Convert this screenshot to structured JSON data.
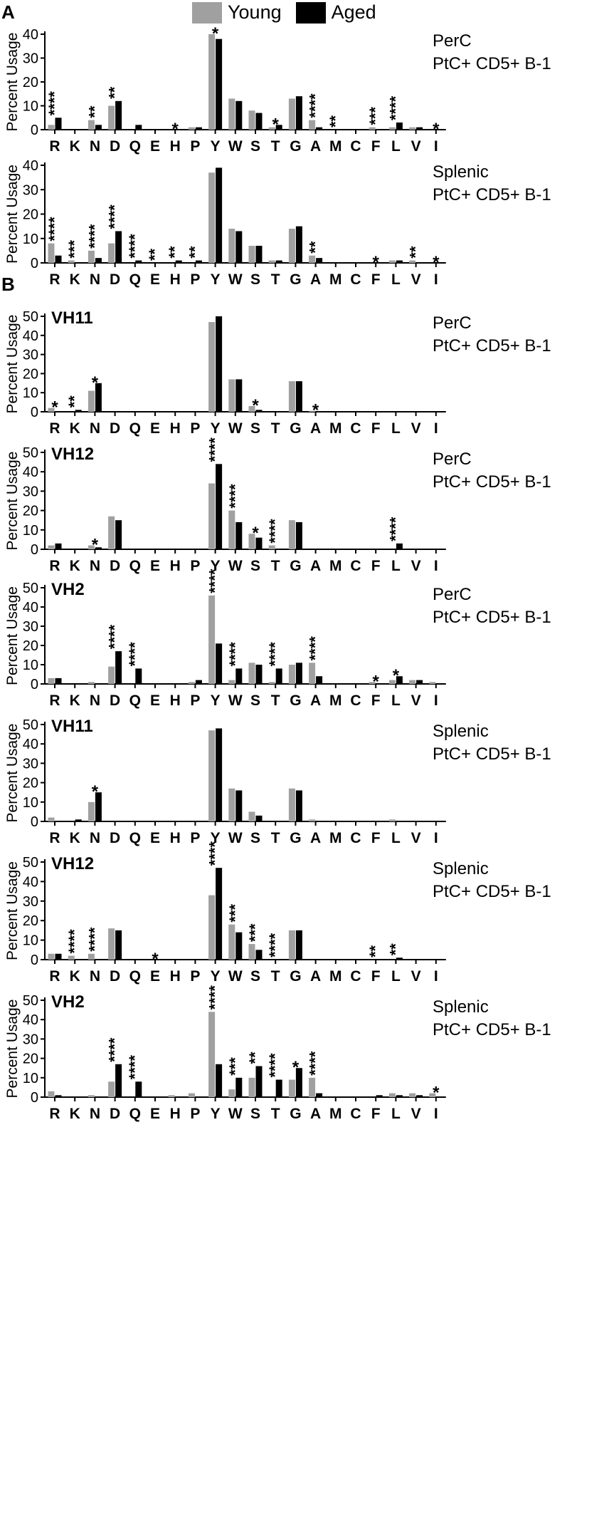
{
  "legend": {
    "young_label": "Young",
    "aged_label": "Aged",
    "young_color": "#a0a0a0",
    "aged_color": "#000000"
  },
  "panel_labels": {
    "a": "A",
    "b": "B"
  },
  "ylabel": "Percent Usage",
  "chart_data": [
    {
      "type": "bar",
      "panel": "A",
      "vh": "",
      "tissue": "PerC",
      "cells": "PtC+ CD5+ B-1",
      "ylabel": "Percent Usage",
      "ylim": [
        0,
        40
      ],
      "yticks": [
        0,
        10,
        20,
        30,
        40
      ],
      "categories": [
        "R",
        "K",
        "N",
        "D",
        "Q",
        "E",
        "H",
        "P",
        "Y",
        "W",
        "S",
        "T",
        "G",
        "A",
        "M",
        "C",
        "F",
        "L",
        "V",
        "I"
      ],
      "series": [
        {
          "name": "Young",
          "values": [
            2,
            0,
            4,
            10,
            0,
            0,
            0,
            1,
            40,
            13,
            8,
            1,
            13,
            4,
            0,
            0,
            1,
            1,
            1,
            0
          ]
        },
        {
          "name": "Aged",
          "values": [
            5,
            0,
            2,
            12,
            2,
            0,
            0,
            1,
            38,
            12,
            7,
            2,
            14,
            1,
            0,
            0,
            0,
            3,
            1,
            0
          ]
        }
      ],
      "significance": [
        "****",
        "",
        "**",
        "**",
        "",
        "",
        "*",
        "",
        "*",
        "",
        "",
        "*",
        "",
        "****",
        "**",
        "",
        "***",
        "****",
        "",
        "*"
      ]
    },
    {
      "type": "bar",
      "panel": "A",
      "vh": "",
      "tissue": "Splenic",
      "cells": "PtC+ CD5+ B-1",
      "ylabel": "Percent Usage",
      "ylim": [
        0,
        40
      ],
      "yticks": [
        0,
        10,
        20,
        30,
        40
      ],
      "categories": [
        "R",
        "K",
        "N",
        "D",
        "Q",
        "E",
        "H",
        "P",
        "Y",
        "W",
        "S",
        "T",
        "G",
        "A",
        "M",
        "C",
        "F",
        "L",
        "V",
        "I"
      ],
      "series": [
        {
          "name": "Young",
          "values": [
            8,
            1,
            5,
            8,
            0,
            0,
            0,
            0,
            37,
            14,
            7,
            1,
            14,
            3,
            0,
            0,
            0,
            1,
            1,
            0
          ]
        },
        {
          "name": "Aged",
          "values": [
            3,
            0,
            2,
            13,
            1,
            0,
            1,
            1,
            39,
            13,
            7,
            1,
            15,
            2,
            0,
            0,
            0,
            1,
            0,
            0
          ]
        }
      ],
      "significance": [
        "****",
        "***",
        "****",
        "****",
        "****",
        "**",
        "**",
        "**",
        "",
        "",
        "",
        "",
        "",
        "**",
        "",
        "",
        "*",
        "",
        "**",
        "*"
      ]
    },
    {
      "type": "bar",
      "panel": "B",
      "vh": "VH11",
      "tissue": "PerC",
      "cells": "PtC+ CD5+ B-1",
      "ylabel": "Percent Usage",
      "ylim": [
        0,
        50
      ],
      "yticks": [
        0,
        10,
        20,
        30,
        40,
        50
      ],
      "categories": [
        "R",
        "K",
        "N",
        "D",
        "Q",
        "E",
        "H",
        "P",
        "Y",
        "W",
        "S",
        "T",
        "G",
        "A",
        "M",
        "C",
        "F",
        "L",
        "V",
        "I"
      ],
      "series": [
        {
          "name": "Young",
          "values": [
            2,
            0,
            11,
            0,
            0,
            0,
            0,
            0,
            47,
            17,
            3,
            0,
            16,
            0.5,
            0,
            0,
            0,
            0,
            0,
            0
          ]
        },
        {
          "name": "Aged",
          "values": [
            0,
            1,
            15,
            0,
            0,
            0,
            0,
            0,
            50,
            17,
            1,
            0,
            16,
            0,
            0,
            0,
            0,
            0,
            0,
            0
          ]
        }
      ],
      "significance": [
        "*",
        "**",
        "*",
        "",
        "",
        "",
        "",
        "",
        "",
        "",
        "*",
        "",
        "",
        "*",
        "",
        "",
        "",
        "",
        "",
        ""
      ]
    },
    {
      "type": "bar",
      "panel": "B",
      "vh": "VH12",
      "tissue": "PerC",
      "cells": "PtC+ CD5+ B-1",
      "ylabel": "Percent Usage",
      "ylim": [
        0,
        50
      ],
      "yticks": [
        0,
        10,
        20,
        30,
        40,
        50
      ],
      "categories": [
        "R",
        "K",
        "N",
        "D",
        "Q",
        "E",
        "H",
        "P",
        "Y",
        "W",
        "S",
        "T",
        "G",
        "A",
        "M",
        "C",
        "F",
        "L",
        "V",
        "I"
      ],
      "series": [
        {
          "name": "Young",
          "values": [
            2,
            0,
            2,
            17,
            0,
            0,
            0,
            0,
            34,
            20,
            8,
            2,
            15,
            0,
            0,
            0,
            0,
            0,
            0,
            0
          ]
        },
        {
          "name": "Aged",
          "values": [
            3,
            0,
            1,
            15,
            0,
            0,
            0,
            0,
            44,
            14,
            6,
            0,
            14,
            0,
            0,
            0,
            0,
            3,
            0,
            0
          ]
        }
      ],
      "significance": [
        "",
        "",
        "*",
        "",
        "",
        "",
        "",
        "",
        "****",
        "****",
        "*",
        "****",
        "",
        "",
        "",
        "",
        "",
        "****",
        "",
        ""
      ]
    },
    {
      "type": "bar",
      "panel": "B",
      "vh": "VH2",
      "tissue": "PerC",
      "cells": "PtC+ CD5+ B-1",
      "ylabel": "Percent Usage",
      "ylim": [
        0,
        50
      ],
      "yticks": [
        0,
        10,
        20,
        30,
        40,
        50
      ],
      "categories": [
        "R",
        "K",
        "N",
        "D",
        "Q",
        "E",
        "H",
        "P",
        "Y",
        "W",
        "S",
        "T",
        "G",
        "A",
        "M",
        "C",
        "F",
        "L",
        "V",
        "I"
      ],
      "series": [
        {
          "name": "Young",
          "values": [
            3,
            0,
            1,
            9,
            0,
            0,
            0,
            1,
            46,
            2,
            11,
            1,
            10,
            11,
            0,
            0,
            1,
            2,
            2,
            1
          ]
        },
        {
          "name": "Aged",
          "values": [
            3,
            0,
            0,
            17,
            8,
            0,
            0,
            2,
            21,
            8,
            10,
            8,
            11,
            4,
            0,
            0,
            0,
            4,
            2,
            0
          ]
        }
      ],
      "significance": [
        "",
        "",
        "",
        "****",
        "****",
        "",
        "",
        "",
        "****",
        "****",
        "",
        "****",
        "",
        "****",
        "",
        "",
        "*",
        "*",
        "",
        ""
      ]
    },
    {
      "type": "bar",
      "panel": "B",
      "vh": "VH11",
      "tissue": "Splenic",
      "cells": "PtC+ CD5+ B-1",
      "ylabel": "Percent Usage",
      "ylim": [
        0,
        50
      ],
      "yticks": [
        0,
        10,
        20,
        30,
        40,
        50
      ],
      "categories": [
        "R",
        "K",
        "N",
        "D",
        "Q",
        "E",
        "H",
        "P",
        "Y",
        "W",
        "S",
        "T",
        "G",
        "A",
        "M",
        "C",
        "F",
        "L",
        "V",
        "I"
      ],
      "series": [
        {
          "name": "Young",
          "values": [
            2,
            0,
            10,
            0,
            0,
            0,
            0,
            0,
            47,
            17,
            5,
            0,
            17,
            1,
            0,
            0,
            0,
            1,
            0,
            0
          ]
        },
        {
          "name": "Aged",
          "values": [
            0,
            1,
            15,
            0,
            0,
            0,
            0,
            0,
            48,
            16,
            3,
            0,
            16,
            0,
            0,
            0,
            0,
            0,
            0,
            0
          ]
        }
      ],
      "significance": [
        "",
        "",
        "*",
        "",
        "",
        "",
        "",
        "",
        "",
        "",
        "",
        "",
        "",
        "",
        "",
        "",
        "",
        "",
        "",
        ""
      ]
    },
    {
      "type": "bar",
      "panel": "B",
      "vh": "VH12",
      "tissue": "Splenic",
      "cells": "PtC+ CD5+ B-1",
      "ylabel": "Percent Usage",
      "ylim": [
        0,
        50
      ],
      "yticks": [
        0,
        10,
        20,
        30,
        40,
        50
      ],
      "categories": [
        "R",
        "K",
        "N",
        "D",
        "Q",
        "E",
        "H",
        "P",
        "Y",
        "W",
        "S",
        "T",
        "G",
        "A",
        "M",
        "C",
        "F",
        "L",
        "V",
        "I"
      ],
      "series": [
        {
          "name": "Young",
          "values": [
            3,
            2,
            3,
            16,
            0,
            0,
            0,
            0,
            33,
            18,
            8,
            0,
            15,
            0,
            0,
            0,
            0,
            0,
            0,
            0
          ]
        },
        {
          "name": "Aged",
          "values": [
            3,
            0,
            0,
            15,
            0,
            0,
            0,
            0,
            47,
            14,
            5,
            0,
            15,
            0,
            0,
            0,
            0,
            1,
            0,
            0
          ]
        }
      ],
      "significance": [
        "",
        "****",
        "****",
        "",
        "",
        "*",
        "",
        "",
        "****",
        "***",
        "***",
        "****",
        "",
        "",
        "",
        "",
        "**",
        "**",
        "",
        ""
      ]
    },
    {
      "type": "bar",
      "panel": "B",
      "vh": "VH2",
      "tissue": "Splenic",
      "cells": "PtC+ CD5+ B-1",
      "ylabel": "Percent Usage",
      "ylim": [
        0,
        50
      ],
      "yticks": [
        0,
        10,
        20,
        30,
        40,
        50
      ],
      "categories": [
        "R",
        "K",
        "N",
        "D",
        "Q",
        "E",
        "H",
        "P",
        "Y",
        "W",
        "S",
        "T",
        "G",
        "A",
        "M",
        "C",
        "F",
        "L",
        "V",
        "I"
      ],
      "series": [
        {
          "name": "Young",
          "values": [
            3,
            0,
            1,
            8,
            0,
            0,
            1,
            2,
            44,
            4,
            10,
            0,
            9,
            10,
            0,
            0,
            0,
            2,
            2,
            2
          ]
        },
        {
          "name": "Aged",
          "values": [
            1,
            0,
            0,
            17,
            8,
            0,
            0,
            0,
            17,
            10,
            16,
            9,
            15,
            2,
            0,
            0,
            1,
            1,
            1,
            0
          ]
        }
      ],
      "significance": [
        "",
        "",
        "",
        "****",
        "****",
        "",
        "",
        "",
        "****",
        "***",
        "**",
        "****",
        "*",
        "****",
        "",
        "",
        "",
        "",
        "",
        "*"
      ]
    }
  ]
}
